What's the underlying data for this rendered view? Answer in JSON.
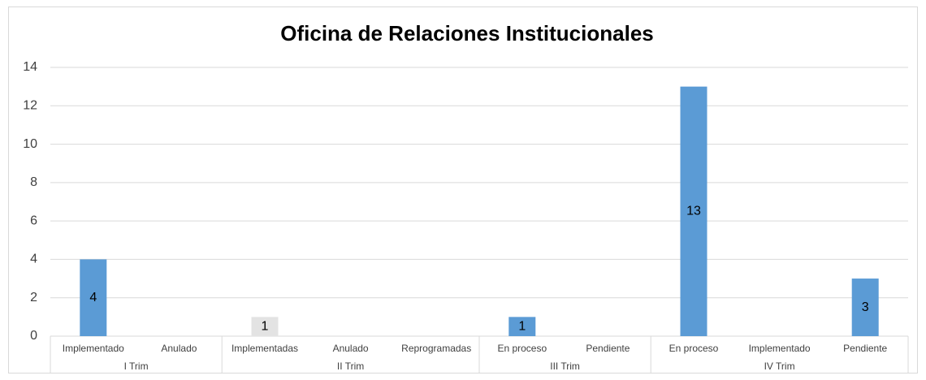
{
  "chart_data": {
    "type": "bar",
    "title": "Oficina de Relaciones Institucionales",
    "groups": [
      {
        "label": "I Trim",
        "categories": [
          "Implementado",
          "Anulado"
        ],
        "values": [
          4,
          null
        ],
        "colors": [
          "#5b9bd5",
          "#5b9bd5"
        ]
      },
      {
        "label": "II Trim",
        "categories": [
          "Implementadas",
          "Anulado",
          "Reprogramadas"
        ],
        "values": [
          1,
          null,
          null
        ],
        "colors": [
          "#e3e3e3",
          "#5b9bd5",
          "#5b9bd5"
        ]
      },
      {
        "label": "III Trim",
        "categories": [
          "En proceso",
          "Pendiente"
        ],
        "values": [
          1,
          null
        ],
        "colors": [
          "#5b9bd5",
          "#5b9bd5"
        ]
      },
      {
        "label": "IV Trim",
        "categories": [
          "En proceso",
          "Implementado",
          "Pendiente"
        ],
        "values": [
          13,
          null,
          3
        ],
        "colors": [
          "#5b9bd5",
          "#5b9bd5",
          "#5b9bd5"
        ]
      }
    ],
    "ylim": [
      0,
      14
    ],
    "yticks": [
      0,
      2,
      4,
      6,
      8,
      10,
      12,
      14
    ],
    "grid": true
  }
}
